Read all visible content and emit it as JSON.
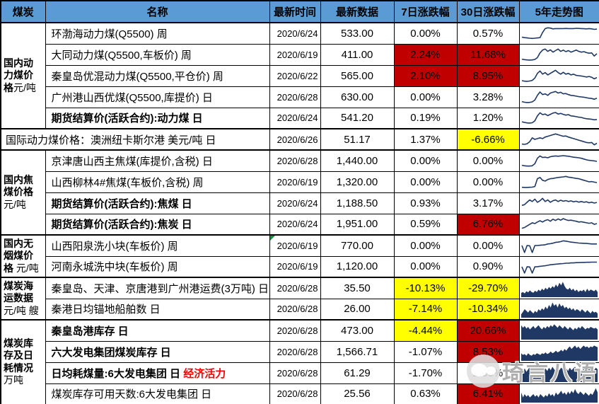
{
  "colors": {
    "header_bg": "#5B9BD5",
    "highlight_red": "#C00000",
    "highlight_yellow": "#FFFF00",
    "spark_navy": "#1F3864",
    "accent_red_text": "#FF0000",
    "note_flag_green": "#1E8F3E"
  },
  "header": {
    "labels": [
      "煤炭",
      "名称",
      "最新时间",
      "最新数据",
      "7日涨跌幅",
      "30日涨跌幅",
      "5年走势图"
    ]
  },
  "sections": [
    {
      "label": "国内动力煤价格",
      "unit": "元/吨"
    },
    {
      "label": "国内焦煤价格",
      "unit": "元/吨"
    },
    {
      "label": "国内无烟煤价格",
      "unit": "元/吨"
    },
    {
      "label": "煤炭海运数据",
      "unit": "元/吨 艘"
    },
    {
      "label": "煤炭库存及日耗情况",
      "unit": "万吨"
    }
  ],
  "watermark": {
    "text": "琦言八语",
    "icon": "wechat-chat-bubbles-icon"
  },
  "rows": [
    {
      "name": "环渤海动力煤(Q5500) 周",
      "date": "2020/6/24",
      "value": "533.00",
      "d7": "0.00%",
      "d30": "0.57%",
      "d7_bg": "",
      "d30_bg": "",
      "spark": {
        "type": "line",
        "values": [
          0.25,
          0.22,
          0.2,
          0.18,
          0.17,
          0.18,
          0.2,
          0.22,
          0.55,
          0.8,
          0.85,
          0.83,
          0.78,
          0.8,
          0.8,
          0.8,
          0.8,
          0.81,
          0.8,
          0.8,
          0.8,
          0.82,
          0.81,
          0.8,
          0.79,
          0.78,
          0.8,
          0.78,
          0.75,
          0.77
        ]
      }
    },
    {
      "name": "大同动力煤(Q5500,车板价) 周",
      "date": "2020/6/19",
      "value": "411.00",
      "d7": "2.24%",
      "d30": "11.68%",
      "d7_bg": "#C00000",
      "d30_bg": "#C00000",
      "spark": {
        "type": "line",
        "values": [
          0.2,
          0.17,
          0.15,
          0.14,
          0.15,
          0.18,
          0.3,
          0.6,
          0.78,
          0.85,
          0.7,
          0.8,
          0.65,
          0.75,
          0.85,
          0.7,
          0.78,
          0.68,
          0.75,
          0.65,
          0.72,
          0.78,
          0.7,
          0.65,
          0.68,
          0.62,
          0.58,
          0.6,
          0.4,
          0.55
        ]
      }
    },
    {
      "name": "秦皇岛优混动力煤(Q5500,平仓价) 周",
      "date": "2020/6/22",
      "value": "565.00",
      "d7": "2.10%",
      "d30": "8.95%",
      "d7_bg": "#C00000",
      "d30_bg": "#C00000",
      "spark": {
        "type": "line",
        "values": [
          0.18,
          0.15,
          0.14,
          0.16,
          0.2,
          0.35,
          0.65,
          0.8,
          0.6,
          0.7,
          0.55,
          0.65,
          0.75,
          0.85,
          0.7,
          0.6,
          0.72,
          0.6,
          0.65,
          0.55,
          0.6,
          0.52,
          0.5,
          0.48,
          0.45,
          0.42,
          0.45,
          0.4,
          0.3,
          0.38
        ]
      }
    },
    {
      "name": "广州港山西优煤(Q5500,库提价) 日",
      "date": "2020/6/28",
      "value": "630.00",
      "d7": "0.00%",
      "d30": "3.28%",
      "d7_bg": "",
      "d30_bg": "",
      "spark": {
        "type": "line",
        "values": [
          0.2,
          0.16,
          0.14,
          0.15,
          0.18,
          0.3,
          0.6,
          0.82,
          0.65,
          0.7,
          0.6,
          0.75,
          0.8,
          0.85,
          0.75,
          0.8,
          0.7,
          0.72,
          0.65,
          0.6,
          0.58,
          0.55,
          0.52,
          0.5,
          0.48,
          0.45,
          0.42,
          0.4,
          0.35,
          0.42
        ]
      }
    },
    {
      "name": "期货结算价(活跃合约):动力煤 日",
      "date": "2020/6/24",
      "value": "541.20",
      "d7": "0.19%",
      "d30": "1.20%",
      "d7_bg": "",
      "d30_bg": "",
      "spark": {
        "type": "line",
        "values": [
          0.22,
          0.18,
          0.15,
          0.14,
          0.16,
          0.28,
          0.6,
          0.8,
          0.68,
          0.72,
          0.62,
          0.7,
          0.78,
          0.82,
          0.72,
          0.76,
          0.7,
          0.65,
          0.68,
          0.6,
          0.58,
          0.55,
          0.52,
          0.5,
          0.45,
          0.42,
          0.4,
          0.38,
          0.35,
          0.37
        ]
      }
    },
    {
      "name": "国际动力煤价格：澳洲纽卡斯尔港 美元/吨 日",
      "date": "2020/6/26",
      "value": "51.17",
      "d7": "1.37%",
      "d30": "-6.66%",
      "d7_bg": "",
      "d30_bg": "#FFFF00",
      "spark": {
        "type": "line",
        "values": [
          0.2,
          0.18,
          0.22,
          0.35,
          0.6,
          0.5,
          0.55,
          0.6,
          0.55,
          0.65,
          0.7,
          0.75,
          0.8,
          0.85,
          0.8,
          0.75,
          0.7,
          0.72,
          0.65,
          0.6,
          0.55,
          0.5,
          0.45,
          0.4,
          0.35,
          0.3,
          0.28,
          0.3,
          0.15,
          0.25
        ]
      }
    },
    {
      "name": "京津唐山西主焦煤(库提价,含税) 日",
      "date": "2020/6/28",
      "value": "1,440.00",
      "d7": "0.00%",
      "d30": "0.00%",
      "d7_bg": "",
      "d30_bg": "",
      "spark": {
        "type": "line",
        "values": [
          0.2,
          0.17,
          0.15,
          0.15,
          0.17,
          0.3,
          0.65,
          0.8,
          0.7,
          0.72,
          0.68,
          0.75,
          0.78,
          0.8,
          0.78,
          0.8,
          0.82,
          0.8,
          0.78,
          0.75,
          0.72,
          0.7,
          0.68,
          0.65,
          0.6,
          0.55,
          0.52,
          0.5,
          0.48,
          0.45
        ]
      }
    },
    {
      "name": "山西柳林4#焦煤(车板价,含税) 周",
      "date": "2020/6/19",
      "value": "1,320.00",
      "d7": "0.00%",
      "d30": "0.00%",
      "d7_bg": "",
      "d30_bg": "",
      "spark": {
        "type": "line",
        "values": [
          0.15,
          0.14,
          0.14,
          0.15,
          0.16,
          0.2,
          0.7,
          0.78,
          0.6,
          0.55,
          0.65,
          0.7,
          0.72,
          0.75,
          0.78,
          0.8,
          0.82,
          0.85,
          0.8,
          0.78,
          0.75,
          0.72,
          0.7,
          0.65,
          0.6,
          0.55,
          0.5,
          0.52,
          0.48,
          0.45
        ]
      }
    },
    {
      "name": "期货结算价(活跃合约):焦煤 日",
      "date": "2020/6/24",
      "value": "1,188.50",
      "d7": "0.93%",
      "d30": "3.17%",
      "d7_bg": "",
      "d30_bg": "",
      "spark": {
        "type": "line",
        "values": [
          0.35,
          0.4,
          0.55,
          0.7,
          0.6,
          0.75,
          0.55,
          0.65,
          0.8,
          0.6,
          0.7,
          0.55,
          0.65,
          0.7,
          0.6,
          0.68,
          0.62,
          0.66,
          0.6,
          0.64,
          0.58,
          0.62,
          0.56,
          0.6,
          0.55,
          0.58,
          0.52,
          0.56,
          0.5,
          0.54
        ]
      }
    },
    {
      "name": "期货结算价(活跃合约):焦炭 日",
      "date": "2020/6/24",
      "value": "1,951.00",
      "d7": "0.59%",
      "d30": "6.76%",
      "d7_bg": "",
      "d30_bg": "#C00000",
      "spark": {
        "type": "line",
        "values": [
          0.2,
          0.25,
          0.35,
          0.45,
          0.55,
          0.5,
          0.6,
          0.68,
          0.6,
          0.7,
          0.75,
          0.65,
          0.78,
          0.7,
          0.8,
          0.72,
          0.82,
          0.75,
          0.7,
          0.72,
          0.68,
          0.65,
          0.6,
          0.62,
          0.58,
          0.55,
          0.52,
          0.55,
          0.45,
          0.5
        ]
      }
    },
    {
      "name": "山西阳泉洗小块(车板价) 周",
      "date": "2020/6/19",
      "value": "770.00",
      "d7": "0.00%",
      "d30": "0.00%",
      "d7_bg": "",
      "d30_bg": "",
      "note_flag": true,
      "spark": {
        "type": "line",
        "values": [
          0.5,
          0.05,
          0.5,
          0.48,
          0.05,
          0.5,
          0.5,
          0.52,
          0.53,
          0.55,
          0.6,
          0.62,
          0.65,
          0.7,
          0.72,
          0.75,
          0.8,
          0.78,
          0.75,
          0.72,
          0.7,
          0.68,
          0.66,
          0.65,
          0.64,
          0.63,
          0.62,
          0.6,
          0.6,
          0.6
        ]
      }
    },
    {
      "name": "河南永城洗中块(车板价) 周",
      "date": "2020/6/19",
      "value": "1,120.00",
      "d7": "0.00%",
      "d30": "0.90%",
      "d7_bg": "",
      "d30_bg": "",
      "spark": {
        "type": "line",
        "values": [
          0.45,
          0.05,
          0.45,
          0.44,
          0.05,
          0.45,
          0.46,
          0.48,
          0.5,
          0.52,
          0.55,
          0.58,
          0.6,
          0.62,
          0.63,
          0.65,
          0.66,
          0.68,
          0.68,
          0.7,
          0.7,
          0.72,
          0.72,
          0.73,
          0.73,
          0.74,
          0.74,
          0.75,
          0.75,
          0.75
        ]
      }
    },
    {
      "name": "秦皇岛、天津、京唐港到广州港运费(3万吨) 日",
      "date": "2020/6/28",
      "value": "35.50",
      "d7": "-10.13%",
      "d30": "-29.70%",
      "d7_bg": "#FFFF00",
      "d30_bg": "#FFFF00",
      "spark": {
        "type": "area",
        "values": [
          0.25,
          0.3,
          0.22,
          0.35,
          0.28,
          0.4,
          0.3,
          0.26,
          0.38,
          0.3,
          0.45,
          0.35,
          0.5,
          0.4,
          0.55,
          0.45,
          0.6,
          0.5,
          0.65,
          0.55,
          0.75,
          0.6,
          0.85,
          0.7,
          0.9,
          0.65,
          0.5,
          0.45,
          0.55,
          0.4,
          0.5,
          0.35,
          0.45,
          0.3,
          0.4,
          0.35,
          0.45,
          0.3,
          0.5,
          0.35,
          0.45,
          0.4,
          0.35,
          0.45,
          0.3
        ]
      }
    },
    {
      "name": "秦港日均锚地船舶数 日",
      "date": "2020/6/28",
      "value": "26.00",
      "d7": "-7.14%",
      "d30": "-10.34%",
      "d7_bg": "#FFFF00",
      "d30_bg": "#FFFF00",
      "spark": {
        "type": "area",
        "values": [
          0.2,
          0.35,
          0.5,
          0.4,
          0.3,
          0.45,
          0.35,
          0.25,
          0.4,
          0.3,
          0.5,
          0.4,
          0.55,
          0.45,
          0.65,
          0.5,
          0.75,
          0.6,
          0.9,
          0.7,
          0.8,
          0.6,
          0.85,
          0.65,
          0.75,
          0.55,
          0.65,
          0.5,
          0.6,
          0.45,
          0.55,
          0.4,
          0.5,
          0.45,
          0.35,
          0.5,
          0.4,
          0.3,
          0.45,
          0.35,
          0.25,
          0.4,
          0.3,
          0.35,
          0.25
        ]
      }
    },
    {
      "name": "秦皇岛港库存 日",
      "date": "2020/6/28",
      "value": "473.00",
      "d7": "-4.44%",
      "d30": "20.66%",
      "d7_bg": "#FFFF00",
      "d30_bg": "#C00000",
      "spark": {
        "type": "area",
        "values": [
          0.85,
          0.7,
          0.8,
          0.65,
          0.75,
          0.6,
          0.7,
          0.8,
          0.65,
          0.75,
          0.85,
          0.7,
          0.6,
          0.75,
          0.65,
          0.8,
          0.7,
          0.85,
          0.75,
          0.9,
          0.8,
          0.7,
          0.85,
          0.75,
          0.65,
          0.8,
          0.7,
          0.6,
          0.75,
          0.65,
          0.55,
          0.7,
          0.6,
          0.75,
          0.65,
          0.8,
          0.7,
          0.6,
          0.7,
          0.65,
          0.75,
          0.7,
          0.65,
          0.7,
          0.6
        ]
      }
    },
    {
      "name": "六大发电集团煤炭库存 日",
      "date": "2020/6/28",
      "value": "1,566.71",
      "d7": "-1.07%",
      "d30": "8.53%",
      "d7_bg": "",
      "d30_bg": "#C00000",
      "spark": {
        "type": "area",
        "values": [
          0.45,
          0.35,
          0.4,
          0.3,
          0.45,
          0.35,
          0.3,
          0.4,
          0.35,
          0.45,
          0.4,
          0.35,
          0.45,
          0.4,
          0.5,
          0.4,
          0.45,
          0.55,
          0.45,
          0.5,
          0.6,
          0.5,
          0.55,
          0.65,
          0.55,
          0.7,
          0.6,
          0.75,
          0.85,
          0.7,
          0.8,
          0.9,
          0.75,
          0.85,
          0.7,
          0.8,
          0.9,
          0.8,
          0.85,
          0.75,
          0.85,
          0.8,
          0.9,
          0.85,
          0.8
        ]
      }
    },
    {
      "name": "日均耗煤量:6大发电集团 日",
      "name_suffix": "经济活力",
      "date": "2020/6/28",
      "value": "61.29",
      "d7": "-1.70%",
      "d30": "2.00%",
      "d7_bg": "",
      "d30_bg": "",
      "spark": {
        "type": "area",
        "values": [
          0.7,
          0.55,
          0.8,
          0.6,
          0.75,
          0.9,
          0.65,
          0.8,
          0.7,
          0.85,
          0.6,
          0.75,
          0.9,
          0.7,
          0.8,
          0.65,
          0.85,
          0.7,
          0.9,
          0.75,
          0.65,
          0.8,
          0.7,
          0.85,
          0.75,
          0.9,
          0.8,
          0.65,
          0.85,
          0.7,
          0.8,
          0.9,
          0.7,
          0.85,
          0.75,
          0.65,
          0.8,
          0.7,
          0.85,
          0.9,
          0.75,
          0.8,
          0.7,
          0.85,
          0.75
        ]
      }
    },
    {
      "name": "煤炭库存可用天数:6大发电集团 日",
      "date": "2020/6/28",
      "value": "25.56",
      "d7": "0.63%",
      "d30": "6.41%",
      "d7_bg": "",
      "d30_bg": "#C00000",
      "spark": {
        "type": "area",
        "values": [
          0.6,
          0.3,
          0.5,
          0.35,
          0.45,
          0.3,
          0.4,
          0.5,
          0.35,
          0.45,
          0.3,
          0.5,
          0.4,
          0.3,
          0.45,
          0.35,
          0.55,
          0.4,
          0.5,
          0.35,
          0.6,
          0.45,
          0.55,
          0.7,
          0.5,
          0.6,
          0.45,
          0.65,
          0.5,
          0.7,
          0.55,
          0.8,
          0.6,
          0.5,
          0.65,
          0.55,
          0.45,
          0.6,
          0.5,
          0.4,
          0.55,
          0.45,
          0.65,
          0.85,
          0.6
        ]
      }
    }
  ]
}
